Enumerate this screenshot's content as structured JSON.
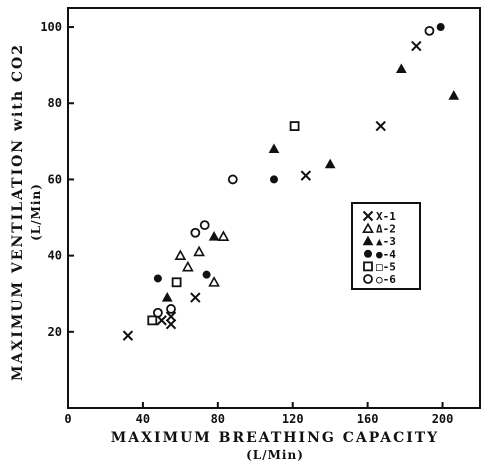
{
  "chart_data": {
    "type": "scatter",
    "xlabel": "MAXIMUM BREATHING CAPACITY",
    "xunit": "(L/Min)",
    "ylabel": "MAXIMUM VENTILATION with CO2",
    "yunit": "(L/Min)",
    "xlim": [
      0,
      220
    ],
    "ylim": [
      0,
      105
    ],
    "xticks": [
      "0",
      "40",
      "80",
      "120",
      "160",
      "200"
    ],
    "yticks": [
      "20",
      "40",
      "60",
      "80",
      "100"
    ],
    "legend_position": "middle-right",
    "series": [
      {
        "name": "X-1",
        "marker": "x",
        "points": [
          [
            32,
            19
          ],
          [
            50,
            23
          ],
          [
            55,
            22
          ],
          [
            55,
            24
          ],
          [
            68,
            29
          ],
          [
            127,
            61
          ],
          [
            167,
            74
          ],
          [
            186,
            95
          ]
        ]
      },
      {
        "name": "Δ-2",
        "marker": "triangle-open",
        "points": [
          [
            60,
            40
          ],
          [
            64,
            37
          ],
          [
            70,
            41
          ],
          [
            78,
            33
          ],
          [
            83,
            45
          ]
        ]
      },
      {
        "name": "▲-3",
        "marker": "triangle-filled",
        "points": [
          [
            53,
            29
          ],
          [
            78,
            45
          ],
          [
            110,
            68
          ],
          [
            140,
            64
          ],
          [
            178,
            89
          ],
          [
            206,
            82
          ]
        ]
      },
      {
        "name": "●-4",
        "marker": "circle-filled",
        "points": [
          [
            48,
            34
          ],
          [
            74,
            35
          ],
          [
            110,
            60
          ],
          [
            199,
            100
          ]
        ]
      },
      {
        "name": "□-5",
        "marker": "square-open",
        "points": [
          [
            45,
            23
          ],
          [
            58,
            33
          ],
          [
            121,
            74
          ]
        ]
      },
      {
        "name": "○-6",
        "marker": "circle-open",
        "points": [
          [
            48,
            25
          ],
          [
            55,
            26
          ],
          [
            68,
            46
          ],
          [
            73,
            48
          ],
          [
            88,
            60
          ],
          [
            193,
            99
          ]
        ]
      }
    ]
  }
}
